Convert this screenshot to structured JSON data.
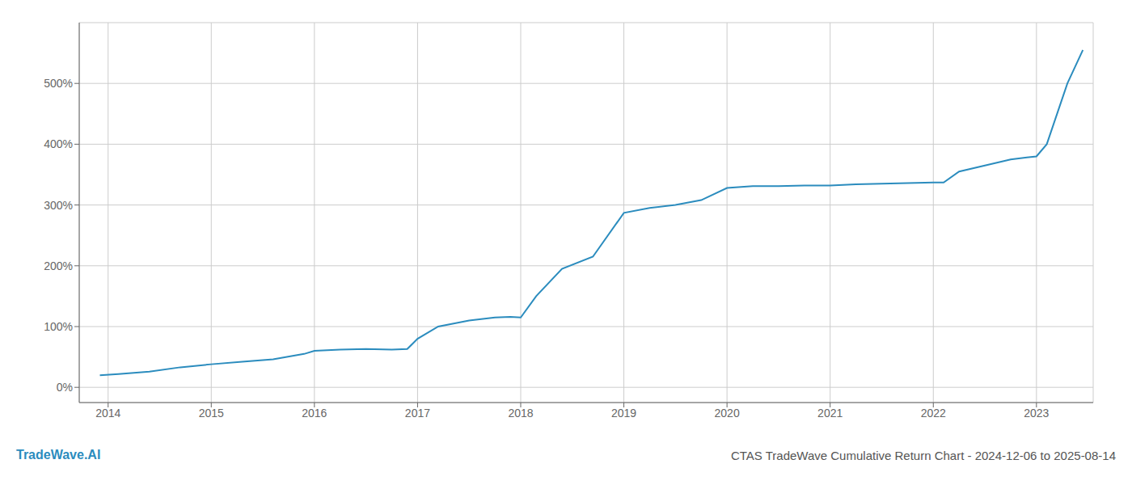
{
  "chart_data": {
    "type": "line",
    "title": "CTAS TradeWave Cumulative Return Chart - 2024-12-06 to 2025-08-14",
    "annotations": [
      {
        "text": "TradeWave.AI",
        "color": "#2b8cbe"
      }
    ],
    "x": [
      2013.92,
      2014.1,
      2014.4,
      2014.7,
      2015.0,
      2015.3,
      2015.6,
      2015.9,
      2016.0,
      2016.25,
      2016.5,
      2016.75,
      2016.9,
      2017.0,
      2017.2,
      2017.5,
      2017.75,
      2017.9,
      2018.0,
      2018.15,
      2018.4,
      2018.7,
      2019.0,
      2019.25,
      2019.5,
      2019.75,
      2020.0,
      2020.25,
      2020.5,
      2020.75,
      2021.0,
      2021.25,
      2021.5,
      2021.75,
      2022.0,
      2022.1,
      2022.25,
      2022.5,
      2022.75,
      2023.0,
      2023.1,
      2023.3,
      2023.45
    ],
    "values": [
      20,
      22,
      26,
      33,
      38,
      42,
      46,
      55,
      60,
      62,
      63,
      62,
      63,
      80,
      100,
      110,
      115,
      116,
      115,
      150,
      195,
      215,
      287,
      295,
      300,
      308,
      328,
      331,
      331,
      332,
      332,
      334,
      335,
      336,
      337,
      337,
      355,
      365,
      375,
      380,
      400,
      500,
      555
    ],
    "color": "#2b8cbe",
    "xlim": [
      2013.72,
      2023.55
    ],
    "xticks": [
      2014,
      2015,
      2016,
      2017,
      2018,
      2019,
      2020,
      2021,
      2022,
      2023
    ],
    "ylim": [
      -25,
      600
    ],
    "yticks": [
      {
        "value": 0,
        "label": "0%"
      },
      {
        "value": 100,
        "label": "100%"
      },
      {
        "value": 200,
        "label": "200%"
      },
      {
        "value": 300,
        "label": "300%"
      },
      {
        "value": 400,
        "label": "400%"
      },
      {
        "value": 500,
        "label": "500%"
      }
    ],
    "grid": true
  }
}
